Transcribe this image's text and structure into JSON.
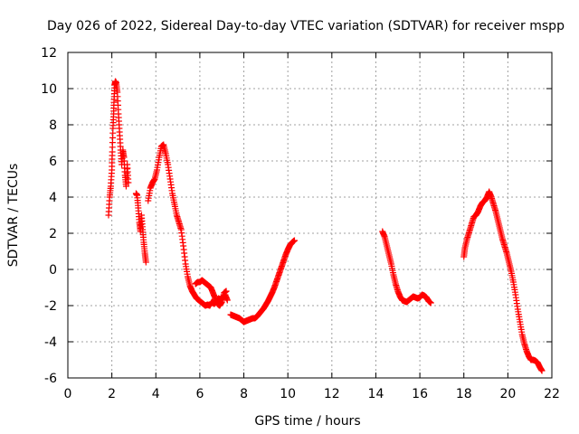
{
  "chart_data": {
    "type": "scatter",
    "title": "Day 026 of 2022, Sidereal Day-to-day VTEC variation (SDTVAR) for receiver mspp",
    "xlabel": "GPS time / hours",
    "ylabel": "SDTVAR / TECUs",
    "xlim": [
      0,
      22
    ],
    "ylim": [
      -6,
      12
    ],
    "xticks": [
      0,
      2,
      4,
      6,
      8,
      10,
      12,
      14,
      16,
      18,
      20,
      22
    ],
    "yticks": [
      -6,
      -4,
      -2,
      0,
      2,
      4,
      6,
      8,
      10,
      12
    ],
    "grid": true,
    "marker": "+",
    "colors": {
      "series": "#ff0000",
      "grid": "#a0a0a0",
      "axis": "#000000"
    },
    "series": [
      {
        "name": "SDTVAR",
        "segments": [
          [
            [
              1.85,
              3.0
            ],
            [
              1.9,
              4.0
            ],
            [
              1.95,
              4.6
            ],
            [
              2.0,
              5.5
            ],
            [
              2.02,
              6.5
            ],
            [
              2.05,
              7.8
            ],
            [
              2.08,
              8.6
            ],
            [
              2.1,
              9.4
            ],
            [
              2.13,
              10.2
            ],
            [
              2.16,
              10.4
            ],
            [
              2.2,
              10.3
            ],
            [
              2.25,
              9.8
            ],
            [
              2.3,
              8.6
            ],
            [
              2.35,
              7.6
            ],
            [
              2.4,
              6.6
            ],
            [
              2.45,
              5.8
            ],
            [
              2.5,
              6.6
            ],
            [
              2.55,
              6.2
            ],
            [
              2.6,
              5.2
            ],
            [
              2.65,
              4.6
            ],
            [
              2.7,
              5.8
            ],
            [
              2.75,
              4.8
            ]
          ],
          [
            [
              3.1,
              4.2
            ],
            [
              3.15,
              4.1
            ],
            [
              3.2,
              3.4
            ],
            [
              3.25,
              2.6
            ],
            [
              3.3,
              2.1
            ],
            [
              3.35,
              3.0
            ],
            [
              3.4,
              2.2
            ],
            [
              3.45,
              1.5
            ],
            [
              3.5,
              0.9
            ],
            [
              3.55,
              0.4
            ]
          ],
          [
            [
              3.65,
              3.8
            ],
            [
              3.75,
              4.5
            ],
            [
              3.85,
              4.8
            ],
            [
              3.95,
              5.0
            ],
            [
              4.05,
              5.5
            ],
            [
              4.15,
              6.2
            ],
            [
              4.25,
              6.8
            ],
            [
              4.35,
              6.9
            ],
            [
              4.45,
              6.4
            ],
            [
              4.55,
              5.8
            ],
            [
              4.65,
              5.0
            ],
            [
              4.75,
              4.2
            ],
            [
              4.85,
              3.6
            ],
            [
              4.95,
              3.0
            ],
            [
              5.05,
              2.6
            ],
            [
              5.15,
              2.2
            ],
            [
              5.25,
              1.3
            ],
            [
              5.35,
              0.3
            ],
            [
              5.45,
              -0.4
            ],
            [
              5.55,
              -0.9
            ],
            [
              5.65,
              -1.2
            ],
            [
              5.75,
              -1.4
            ],
            [
              5.85,
              -1.6
            ],
            [
              5.95,
              -1.7
            ],
            [
              6.05,
              -1.8
            ],
            [
              6.15,
              -1.9
            ],
            [
              6.25,
              -2.0
            ],
            [
              6.35,
              -1.95
            ],
            [
              6.45,
              -2.0
            ],
            [
              6.55,
              -1.8
            ],
            [
              6.65,
              -1.9
            ],
            [
              6.75,
              -1.8
            ],
            [
              6.85,
              -1.6
            ],
            [
              6.95,
              -1.7
            ],
            [
              7.05,
              -1.5
            ],
            [
              7.15,
              -1.4
            ],
            [
              7.25,
              -1.7
            ]
          ],
          [
            [
              5.8,
              -0.8
            ],
            [
              5.9,
              -0.7
            ],
            [
              6.0,
              -0.7
            ],
            [
              6.1,
              -0.6
            ],
            [
              6.2,
              -0.7
            ],
            [
              6.3,
              -0.8
            ],
            [
              6.4,
              -0.9
            ],
            [
              6.5,
              -1.0
            ],
            [
              6.6,
              -1.3
            ],
            [
              6.7,
              -1.6
            ],
            [
              6.8,
              -1.9
            ],
            [
              6.9,
              -2.0
            ],
            [
              7.0,
              -1.8
            ],
            [
              7.1,
              -1.3
            ],
            [
              7.2,
              -1.2
            ]
          ],
          [
            [
              7.4,
              -2.5
            ],
            [
              7.5,
              -2.55
            ],
            [
              7.6,
              -2.6
            ],
            [
              7.7,
              -2.65
            ],
            [
              7.8,
              -2.7
            ],
            [
              7.9,
              -2.8
            ],
            [
              8.0,
              -2.9
            ],
            [
              8.1,
              -2.85
            ],
            [
              8.2,
              -2.8
            ],
            [
              8.3,
              -2.75
            ],
            [
              8.4,
              -2.7
            ],
            [
              8.5,
              -2.7
            ],
            [
              8.6,
              -2.6
            ],
            [
              8.7,
              -2.45
            ],
            [
              8.8,
              -2.3
            ],
            [
              8.9,
              -2.15
            ],
            [
              9.0,
              -1.95
            ],
            [
              9.1,
              -1.75
            ],
            [
              9.2,
              -1.5
            ],
            [
              9.3,
              -1.25
            ],
            [
              9.4,
              -0.95
            ],
            [
              9.5,
              -0.6
            ],
            [
              9.6,
              -0.25
            ],
            [
              9.7,
              0.1
            ],
            [
              9.8,
              0.45
            ],
            [
              9.9,
              0.8
            ],
            [
              10.0,
              1.1
            ],
            [
              10.1,
              1.35
            ],
            [
              10.2,
              1.5
            ],
            [
              10.3,
              1.6
            ]
          ],
          [
            [
              14.3,
              2.1
            ],
            [
              14.4,
              1.8
            ],
            [
              14.5,
              1.3
            ],
            [
              14.6,
              0.8
            ],
            [
              14.7,
              0.3
            ],
            [
              14.8,
              -0.3
            ],
            [
              14.9,
              -0.8
            ],
            [
              15.0,
              -1.2
            ],
            [
              15.1,
              -1.5
            ],
            [
              15.2,
              -1.7
            ],
            [
              15.3,
              -1.75
            ],
            [
              15.4,
              -1.8
            ],
            [
              15.5,
              -1.7
            ],
            [
              15.6,
              -1.6
            ],
            [
              15.7,
              -1.5
            ],
            [
              15.8,
              -1.55
            ],
            [
              15.9,
              -1.6
            ],
            [
              16.0,
              -1.55
            ],
            [
              16.1,
              -1.4
            ],
            [
              16.2,
              -1.45
            ],
            [
              16.3,
              -1.55
            ],
            [
              16.4,
              -1.75
            ],
            [
              16.5,
              -1.85
            ]
          ],
          [
            [
              18.0,
              0.7
            ],
            [
              18.05,
              1.2
            ],
            [
              18.15,
              1.7
            ],
            [
              18.25,
              2.1
            ],
            [
              18.35,
              2.5
            ],
            [
              18.45,
              2.9
            ],
            [
              18.55,
              3.0
            ],
            [
              18.65,
              3.2
            ],
            [
              18.75,
              3.5
            ],
            [
              18.85,
              3.7
            ],
            [
              18.95,
              3.8
            ],
            [
              19.05,
              4.0
            ],
            [
              19.15,
              4.3
            ],
            [
              19.25,
              4.0
            ],
            [
              19.35,
              3.6
            ],
            [
              19.45,
              3.2
            ],
            [
              19.55,
              2.7
            ],
            [
              19.65,
              2.2
            ],
            [
              19.75,
              1.7
            ],
            [
              19.85,
              1.3
            ],
            [
              19.95,
              0.9
            ],
            [
              20.05,
              0.4
            ],
            [
              20.15,
              -0.1
            ],
            [
              20.25,
              -0.7
            ],
            [
              20.35,
              -1.4
            ],
            [
              20.45,
              -2.2
            ],
            [
              20.55,
              -2.9
            ],
            [
              20.65,
              -3.6
            ],
            [
              20.75,
              -4.1
            ],
            [
              20.85,
              -4.5
            ],
            [
              20.95,
              -4.8
            ],
            [
              21.05,
              -5.0
            ],
            [
              21.15,
              -5.0
            ],
            [
              21.25,
              -5.05
            ],
            [
              21.35,
              -5.15
            ],
            [
              21.45,
              -5.4
            ],
            [
              21.55,
              -5.6
            ]
          ]
        ]
      }
    ]
  }
}
